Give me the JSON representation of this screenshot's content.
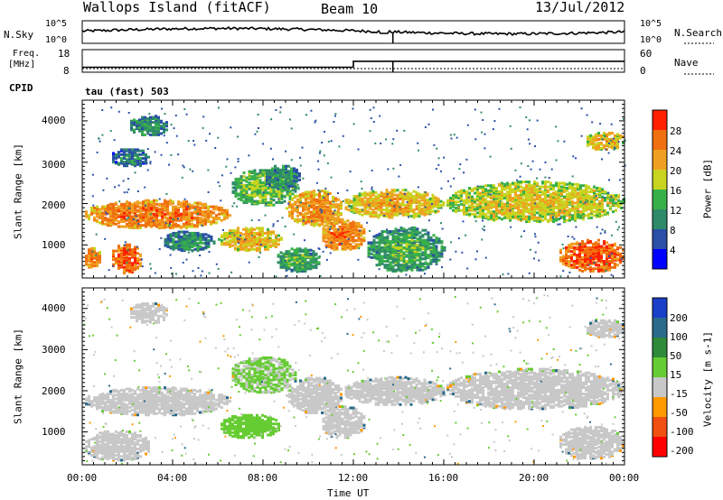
{
  "header": {
    "station": "Wallops Island (fitACF)",
    "beam": "Beam 10",
    "date": "13/Jul/2012"
  },
  "noise_panel": {
    "left_label": "N.Sky",
    "right_label": "N.Search",
    "left_ticks": [
      "10^5",
      "10^0"
    ],
    "right_ticks": [
      "10^5",
      "10^0"
    ]
  },
  "freq_panel": {
    "left_label_line1": "Freq.",
    "left_label_line2": "[MHz]",
    "left_ticks": [
      "18",
      "8"
    ],
    "right_label": "Nave",
    "right_ticks": [
      "60",
      "0"
    ],
    "freq_steps": [
      [
        0,
        10.5
      ],
      [
        12,
        10.5
      ],
      [
        12,
        13.5
      ],
      [
        24,
        13.5
      ]
    ],
    "nave_steps": [
      [
        0,
        5
      ],
      [
        24,
        5
      ]
    ],
    "freq_dip_hour": 13.75
  },
  "cpid": {
    "label": "CPID",
    "value": "tau (fast) 503"
  },
  "chart_data": [
    {
      "type": "heatmap",
      "name": "power",
      "ylabel": "Slant Range [km]",
      "xlim": [
        0,
        24
      ],
      "ylim": [
        200,
        4500
      ],
      "x_ticks": [
        "00:00",
        "04:00",
        "08:00",
        "12:00",
        "16:00",
        "20:00",
        "00:00"
      ],
      "y_ticks": [
        "1000",
        "2000",
        "3000",
        "4000"
      ],
      "colorbar": {
        "label": "Power [dB]",
        "ticks": [
          "4",
          "8",
          "12",
          "16",
          "20",
          "24",
          "28"
        ],
        "colors": [
          "#0000ff",
          "#2a4fa6",
          "#2f8a6a",
          "#38b04a",
          "#c8d420",
          "#f0a020",
          "#f07010",
          "#ff2000"
        ]
      },
      "regions": [
        {
          "t0": 0.0,
          "t1": 6.5,
          "r0": 1350,
          "r1": 2050,
          "v": 22
        },
        {
          "t0": 6.5,
          "t1": 9.5,
          "r0": 1900,
          "r1": 2800,
          "v": 12
        },
        {
          "t0": 8.0,
          "t1": 9.6,
          "r0": 2300,
          "r1": 2900,
          "v": 8
        },
        {
          "t0": 1.2,
          "t1": 3.0,
          "r0": 2850,
          "r1": 3300,
          "v": 6
        },
        {
          "t0": 2.0,
          "t1": 3.8,
          "r0": 3600,
          "r1": 4100,
          "v": 8
        },
        {
          "t0": 0.0,
          "t1": 0.8,
          "r0": 400,
          "r1": 900,
          "v": 22
        },
        {
          "t0": 1.2,
          "t1": 2.6,
          "r0": 250,
          "r1": 1000,
          "v": 24
        },
        {
          "t0": 3.5,
          "t1": 5.8,
          "r0": 800,
          "r1": 1300,
          "v": 8
        },
        {
          "t0": 6.0,
          "t1": 8.8,
          "r0": 800,
          "r1": 1400,
          "v": 18
        },
        {
          "t0": 8.5,
          "t1": 10.5,
          "r0": 300,
          "r1": 900,
          "v": 10
        },
        {
          "t0": 9.0,
          "t1": 11.5,
          "r0": 1400,
          "r1": 2300,
          "v": 20
        },
        {
          "t0": 10.5,
          "t1": 12.5,
          "r0": 800,
          "r1": 1600,
          "v": 22
        },
        {
          "t0": 11.5,
          "t1": 16.0,
          "r0": 1600,
          "r1": 2300,
          "v": 18
        },
        {
          "t0": 12.5,
          "t1": 16.0,
          "r0": 300,
          "r1": 1400,
          "v": 10
        },
        {
          "t0": 16.0,
          "t1": 24.0,
          "r0": 1500,
          "r1": 2500,
          "v": 16
        },
        {
          "t0": 21.0,
          "t1": 24.0,
          "r0": 300,
          "r1": 1100,
          "v": 24
        },
        {
          "t0": 22.2,
          "t1": 24.0,
          "r0": 3250,
          "r1": 3700,
          "v": 18
        }
      ]
    },
    {
      "type": "heatmap",
      "name": "velocity",
      "ylabel": "Slant Range [km]",
      "xlabel": "Time UT",
      "xlim": [
        0,
        24
      ],
      "ylim": [
        200,
        4500
      ],
      "x_ticks": [
        "00:00",
        "04:00",
        "08:00",
        "12:00",
        "16:00",
        "20:00",
        "00:00"
      ],
      "y_ticks": [
        "1000",
        "2000",
        "3000",
        "4000"
      ],
      "colorbar": {
        "label": "Velocity [m s-1]",
        "ticks": [
          "200",
          "100",
          "50",
          "15",
          "-15",
          "-50",
          "-100",
          "-200"
        ],
        "colors": [
          "#1a3fc8",
          "#2a6a8a",
          "#2f8a3a",
          "#66cc33",
          "#c8c8c8",
          "#ff9900",
          "#f05010",
          "#ff0000"
        ]
      },
      "regions": [
        {
          "t0": 0.0,
          "t1": 6.5,
          "r0": 1350,
          "r1": 2050,
          "v": 0
        },
        {
          "t0": 6.5,
          "t1": 9.5,
          "r0": 1900,
          "r1": 2800,
          "v": 10
        },
        {
          "t0": 2.0,
          "t1": 3.8,
          "r0": 3600,
          "r1": 4100,
          "v": 0
        },
        {
          "t0": 0.0,
          "t1": 3.0,
          "r0": 250,
          "r1": 1000,
          "v": 0
        },
        {
          "t0": 6.0,
          "t1": 8.8,
          "r0": 800,
          "r1": 1400,
          "v": 30
        },
        {
          "t0": 9.0,
          "t1": 11.5,
          "r0": 1400,
          "r1": 2300,
          "v": 0
        },
        {
          "t0": 10.5,
          "t1": 12.5,
          "r0": 800,
          "r1": 1600,
          "v": 0
        },
        {
          "t0": 11.5,
          "t1": 16.0,
          "r0": 1600,
          "r1": 2300,
          "v": 0
        },
        {
          "t0": 16.0,
          "t1": 24.0,
          "r0": 1500,
          "r1": 2500,
          "v": 0
        },
        {
          "t0": 21.0,
          "t1": 24.0,
          "r0": 300,
          "r1": 1100,
          "v": 0
        },
        {
          "t0": 22.2,
          "t1": 24.0,
          "r0": 3250,
          "r1": 3700,
          "v": 0
        }
      ]
    }
  ]
}
